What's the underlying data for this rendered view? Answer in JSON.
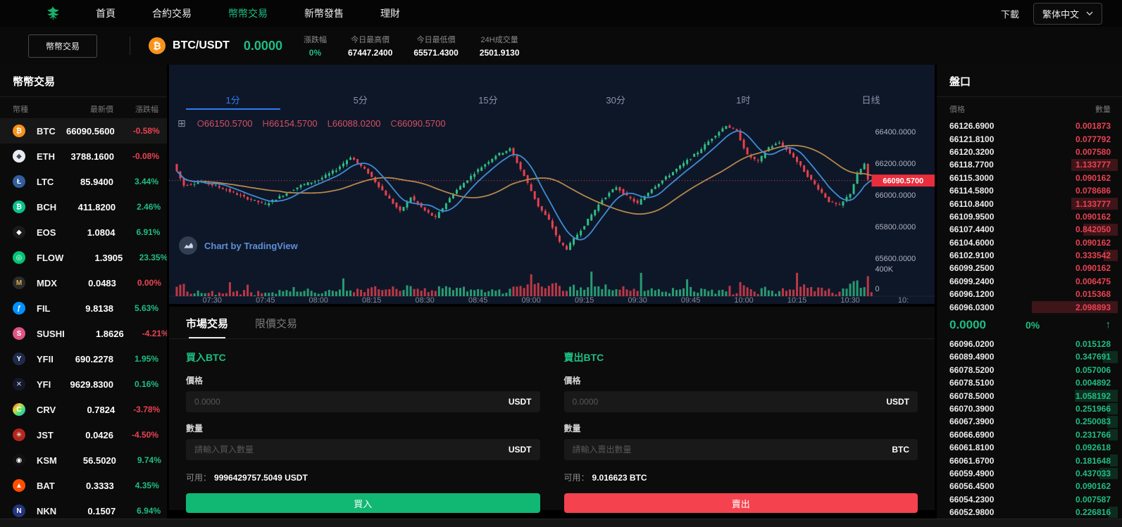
{
  "colors": {
    "green": "#1ebe83",
    "red": "#ea4252",
    "blue": "#2e7cf6",
    "btn-green": "#10b873",
    "btn-red": "#f4424e",
    "btc-orange": "#f7931a"
  },
  "nav": {
    "items": [
      {
        "label": "首頁",
        "active": false
      },
      {
        "label": "合約交易",
        "active": false
      },
      {
        "label": "幣幣交易",
        "active": true
      },
      {
        "label": "新幣發售",
        "active": false
      },
      {
        "label": "理財",
        "active": false
      }
    ],
    "download_label": "下載",
    "language": "繁体中文"
  },
  "ticker": {
    "market_button": "幣幣交易",
    "pair": "BTC/USDT",
    "last_price": "0.0000",
    "btc_glyph": "₿",
    "stats": [
      {
        "label": "漲跌幅",
        "value": "0%",
        "color": "green"
      },
      {
        "label": "今日最高價",
        "value": "67447.2400"
      },
      {
        "label": "今日最低價",
        "value": "65571.4300"
      },
      {
        "label": "24H成交量",
        "value": "2501.9130"
      }
    ]
  },
  "sidebar": {
    "title": "幣幣交易",
    "columns": [
      "幣種",
      "最新價",
      "漲跌幅"
    ],
    "coins": [
      {
        "symbol": "BTC",
        "price": "66090.5600",
        "change": "-0.58%",
        "dir": "down",
        "icon_bg": "#f7931a",
        "glyph": "₿",
        "active": true
      },
      {
        "symbol": "ETH",
        "price": "3788.1600",
        "change": "-0.08%",
        "dir": "down",
        "icon_bg": "#e9ebf1",
        "icon_fg": "#454a58",
        "glyph": "◆"
      },
      {
        "symbol": "LTC",
        "price": "85.9400",
        "change": "3.44%",
        "dir": "up",
        "icon_bg": "#345d9d",
        "glyph": "Ł"
      },
      {
        "symbol": "BCH",
        "price": "411.8200",
        "change": "2.46%",
        "dir": "up",
        "icon_bg": "#0ac18e",
        "glyph": "₿"
      },
      {
        "symbol": "EOS",
        "price": "1.0804",
        "change": "6.91%",
        "dir": "up",
        "icon_bg": "#1b1b1b",
        "glyph": "◆"
      },
      {
        "symbol": "FLOW",
        "price": "1.3905",
        "change": "23.35%",
        "dir": "up",
        "icon_bg": "#00c477",
        "glyph": "◎"
      },
      {
        "symbol": "MDX",
        "price": "0.0483",
        "change": "0.00%",
        "dir": "down",
        "icon_bg": "#2b2b2b",
        "icon_fg": "#d8b04a",
        "glyph": "M"
      },
      {
        "symbol": "FIL",
        "price": "9.8138",
        "change": "5.63%",
        "dir": "up",
        "icon_bg": "#0090ff",
        "glyph": "ƒ"
      },
      {
        "symbol": "SUSHI",
        "price": "1.8626",
        "change": "-4.21%",
        "dir": "down",
        "icon_bg": "#e05386",
        "glyph": "S"
      },
      {
        "symbol": "YFII",
        "price": "690.2278",
        "change": "1.95%",
        "dir": "up",
        "icon_bg": "#1f2b4a",
        "glyph": "Y"
      },
      {
        "symbol": "YFI",
        "price": "9629.8300",
        "change": "0.16%",
        "dir": "up",
        "icon_bg": "#14182b",
        "icon_fg": "#cfd6ea",
        "glyph": "✕"
      },
      {
        "symbol": "CRV",
        "price": "0.7824",
        "change": "-3.78%",
        "dir": "down",
        "icon_bg": "linear-gradient(135deg,#e23b3b,#e2d43b,#3be27a,#3b9be2)",
        "glyph": "C"
      },
      {
        "symbol": "JST",
        "price": "0.0426",
        "change": "-4.50%",
        "dir": "down",
        "icon_bg": "#b3261e",
        "glyph": "✳"
      },
      {
        "symbol": "KSM",
        "price": "56.5020",
        "change": "9.74%",
        "dir": "up",
        "icon_bg": "#111111",
        "glyph": "◉"
      },
      {
        "symbol": "BAT",
        "price": "0.3333",
        "change": "4.35%",
        "dir": "up",
        "icon_bg": "#ff5000",
        "glyph": "▲"
      },
      {
        "symbol": "NKN",
        "price": "0.1507",
        "change": "6.94%",
        "dir": "up",
        "icon_bg": "#24357f",
        "glyph": "N"
      }
    ]
  },
  "chart": {
    "timeframes": [
      {
        "label": "1分",
        "active": true
      },
      {
        "label": "5分",
        "active": false
      },
      {
        "label": "15分",
        "active": false
      },
      {
        "label": "30分",
        "active": false
      },
      {
        "label": "1时",
        "active": false
      },
      {
        "label": "日线",
        "active": false
      }
    ],
    "grid_icon": "⊞",
    "ohlc_items": [
      {
        "k": "O",
        "v": "66150.5700"
      },
      {
        "k": "H",
        "v": "66154.5700"
      },
      {
        "k": "L",
        "v": "66088.0200"
      },
      {
        "k": "C",
        "v": "66090.5700"
      }
    ],
    "watermark": "Chart by TradingView",
    "chart_data": {
      "type": "candlestick",
      "x_labels": [
        "07:30",
        "07:45",
        "08:00",
        "08:15",
        "08:30",
        "08:45",
        "09:00",
        "09:15",
        "09:30",
        "09:45",
        "10:00",
        "10:15",
        "10:30",
        "10:"
      ],
      "y_ticks": [
        66400,
        66200,
        66000,
        65800,
        65600
      ],
      "y_tick_labels": [
        "66400.0000",
        "66200.0000",
        "66000.0000",
        "65800.0000",
        "65600.0000"
      ],
      "ylim": [
        65560,
        66500
      ],
      "volume_axis": [
        "400K",
        "0"
      ],
      "volume_max": 400000,
      "last_price": 66090.57,
      "last_price_label": "66090.5700",
      "price_label_bg": "#e82e3d",
      "up_color": "#2ebd85",
      "down_color": "#e8414d",
      "ma_fast_color": "#3f8cd6",
      "ma_slow_color": "#b5874c",
      "price_anchors": [
        [
          0,
          66195
        ],
        [
          3,
          66060
        ],
        [
          8,
          66085
        ],
        [
          14,
          66040
        ],
        [
          20,
          65985
        ],
        [
          26,
          65940
        ],
        [
          31,
          66000
        ],
        [
          36,
          66060
        ],
        [
          41,
          66095
        ],
        [
          46,
          66160
        ],
        [
          50,
          66240
        ],
        [
          55,
          66140
        ],
        [
          60,
          66000
        ],
        [
          64,
          65895
        ],
        [
          67,
          65985
        ],
        [
          71,
          65900
        ],
        [
          74,
          65855
        ],
        [
          79,
          66010
        ],
        [
          85,
          66140
        ],
        [
          91,
          66250
        ],
        [
          95,
          66290
        ],
        [
          99,
          66120
        ],
        [
          103,
          65930
        ],
        [
          106,
          65840
        ],
        [
          109,
          65700
        ],
        [
          111,
          65660
        ],
        [
          116,
          65810
        ],
        [
          121,
          65970
        ],
        [
          125,
          66050
        ],
        [
          128,
          65990
        ],
        [
          131,
          65945
        ],
        [
          135,
          66040
        ],
        [
          139,
          66110
        ],
        [
          143,
          66180
        ],
        [
          148,
          66270
        ],
        [
          152,
          66360
        ],
        [
          156,
          66440
        ],
        [
          159,
          66400
        ],
        [
          162,
          66250
        ],
        [
          165,
          66210
        ],
        [
          168,
          66300
        ],
        [
          171,
          66330
        ],
        [
          175,
          66240
        ],
        [
          179,
          66120
        ],
        [
          182,
          66040
        ],
        [
          185,
          65960
        ],
        [
          188,
          65930
        ],
        [
          191,
          66010
        ],
        [
          193,
          66130
        ],
        [
          195,
          66195
        ],
        [
          196,
          66090
        ]
      ]
    }
  },
  "trade": {
    "tabs": [
      {
        "label": "市場交易",
        "active": true
      },
      {
        "label": "限價交易",
        "active": false
      }
    ],
    "buy": {
      "title": "買入BTC",
      "price_label": "價格",
      "price_placeholder": "0.0000",
      "price_unit": "USDT",
      "amount_label": "數量",
      "amount_placeholder": "請輸入買入數量",
      "amount_unit": "USDT",
      "available_label": "可用：",
      "available": "9996429757.5049 USDT",
      "button": "買入"
    },
    "sell": {
      "title": "賣出BTC",
      "price_label": "價格",
      "price_placeholder": "0.0000",
      "price_unit": "USDT",
      "amount_label": "數量",
      "amount_placeholder": "請輸入賣出數量",
      "amount_unit": "BTC",
      "available_label": "可用：",
      "available": "9.016623 BTC",
      "button": "賣出"
    }
  },
  "orderbook": {
    "title": "盤口",
    "columns": {
      "price": "價格",
      "amount": "數量"
    },
    "asks": [
      {
        "price": "66126.6900",
        "amount": "0.001873",
        "depth": 0
      },
      {
        "price": "66121.8100",
        "amount": "0.077792",
        "depth": 0
      },
      {
        "price": "66120.3200",
        "amount": "0.007580",
        "depth": 0
      },
      {
        "price": "66118.7700",
        "amount": "1.133777",
        "depth": 0.54
      },
      {
        "price": "66115.3000",
        "amount": "0.090162",
        "depth": 0
      },
      {
        "price": "66114.5800",
        "amount": "0.078686",
        "depth": 0
      },
      {
        "price": "66110.8400",
        "amount": "1.133777",
        "depth": 0.54
      },
      {
        "price": "66109.9500",
        "amount": "0.090162",
        "depth": 0
      },
      {
        "price": "66107.4400",
        "amount": "0.842050",
        "depth": 0.4
      },
      {
        "price": "66104.6000",
        "amount": "0.090162",
        "depth": 0
      },
      {
        "price": "66102.9100",
        "amount": "0.333542",
        "depth": 0.16
      },
      {
        "price": "66099.2500",
        "amount": "0.090162",
        "depth": 0
      },
      {
        "price": "66099.2400",
        "amount": "0.006475",
        "depth": 0
      },
      {
        "price": "66096.1200",
        "amount": "0.015368",
        "depth": 0
      },
      {
        "price": "66096.0300",
        "amount": "2.098893",
        "depth": 1
      }
    ],
    "mid": {
      "price": "0.0000",
      "percent": "0%",
      "arrow": "↑"
    },
    "bids": [
      {
        "price": "66096.0200",
        "amount": "0.015128",
        "depth": 0
      },
      {
        "price": "66089.4900",
        "amount": "0.347691",
        "depth": 0.17
      },
      {
        "price": "66078.5200",
        "amount": "0.057006",
        "depth": 0
      },
      {
        "price": "66078.5100",
        "amount": "0.004892",
        "depth": 0
      },
      {
        "price": "66078.5000",
        "amount": "1.058192",
        "depth": 0.5
      },
      {
        "price": "66070.3900",
        "amount": "0.251966",
        "depth": 0.12
      },
      {
        "price": "66067.3900",
        "amount": "0.250083",
        "depth": 0.12
      },
      {
        "price": "66066.6900",
        "amount": "0.231766",
        "depth": 0.11
      },
      {
        "price": "66061.8100",
        "amount": "0.092618",
        "depth": 0
      },
      {
        "price": "66061.6700",
        "amount": "0.181648",
        "depth": 0.09
      },
      {
        "price": "66059.4900",
        "amount": "0.437033",
        "depth": 0.21
      },
      {
        "price": "66056.4500",
        "amount": "0.090162",
        "depth": 0
      },
      {
        "price": "66054.2300",
        "amount": "0.007587",
        "depth": 0
      },
      {
        "price": "66052.9800",
        "amount": "0.226816",
        "depth": 0.11
      },
      {
        "price": "66051.1000",
        "amount": "0.090162",
        "depth": 0
      }
    ]
  }
}
